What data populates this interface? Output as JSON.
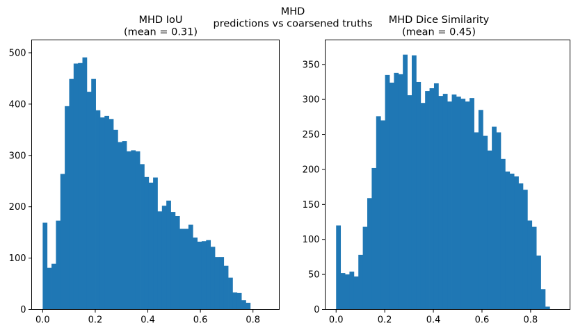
{
  "figure": {
    "suptitle_line1": "MHD",
    "suptitle_line2": "predictions vs coarsened truths"
  },
  "colors": {
    "bar": "#1f77b4",
    "axis": "#000000"
  },
  "chart_data": [
    {
      "type": "bar",
      "subtype": "histogram",
      "title_line1": "MHD IoU",
      "title_line2": "(mean = 0.31)",
      "xlabel": "",
      "ylabel": "",
      "xlim": [
        -0.042,
        0.9
      ],
      "ylim": [
        0,
        525
      ],
      "xticks": [
        "0.0",
        "0.2",
        "0.4",
        "0.6",
        "0.8"
      ],
      "xtick_values": [
        0.0,
        0.2,
        0.4,
        0.6,
        0.8
      ],
      "yticks": [
        "0",
        "100",
        "200",
        "300",
        "400",
        "500"
      ],
      "ytick_values": [
        0,
        100,
        200,
        300,
        400,
        500
      ],
      "bin_start": 0.0,
      "bin_width": 0.0168,
      "values": [
        169,
        81,
        89,
        173,
        264,
        396,
        449,
        479,
        480,
        491,
        424,
        449,
        388,
        374,
        377,
        371,
        350,
        326,
        328,
        308,
        310,
        308,
        283,
        258,
        247,
        257,
        191,
        202,
        212,
        190,
        182,
        157,
        157,
        165,
        140,
        132,
        133,
        135,
        122,
        102,
        102,
        85,
        62,
        33,
        32,
        18,
        13
      ]
    },
    {
      "type": "bar",
      "subtype": "histogram",
      "title_line1": "MHD Dice Similarity",
      "title_line2": "(mean = 0.45)",
      "xlabel": "",
      "ylabel": "",
      "xlim": [
        -0.045,
        0.962
      ],
      "ylim": [
        0,
        385
      ],
      "xticks": [
        "0.0",
        "0.2",
        "0.4",
        "0.6",
        "0.8"
      ],
      "xtick_values": [
        0.0,
        0.2,
        0.4,
        0.6,
        0.8
      ],
      "yticks": [
        "0",
        "50",
        "100",
        "150",
        "200",
        "250",
        "300",
        "350"
      ],
      "ytick_values": [
        0,
        50,
        100,
        150,
        200,
        250,
        300,
        350
      ],
      "bin_start": 0.0,
      "bin_width": 0.0183,
      "values": [
        120,
        52,
        50,
        54,
        47,
        78,
        118,
        159,
        202,
        276,
        270,
        335,
        324,
        338,
        336,
        364,
        306,
        363,
        325,
        295,
        312,
        316,
        323,
        305,
        308,
        297,
        307,
        304,
        301,
        297,
        302,
        253,
        285,
        248,
        227,
        261,
        253,
        215,
        197,
        194,
        190,
        180,
        171,
        127,
        118,
        77,
        29,
        4
      ]
    }
  ]
}
